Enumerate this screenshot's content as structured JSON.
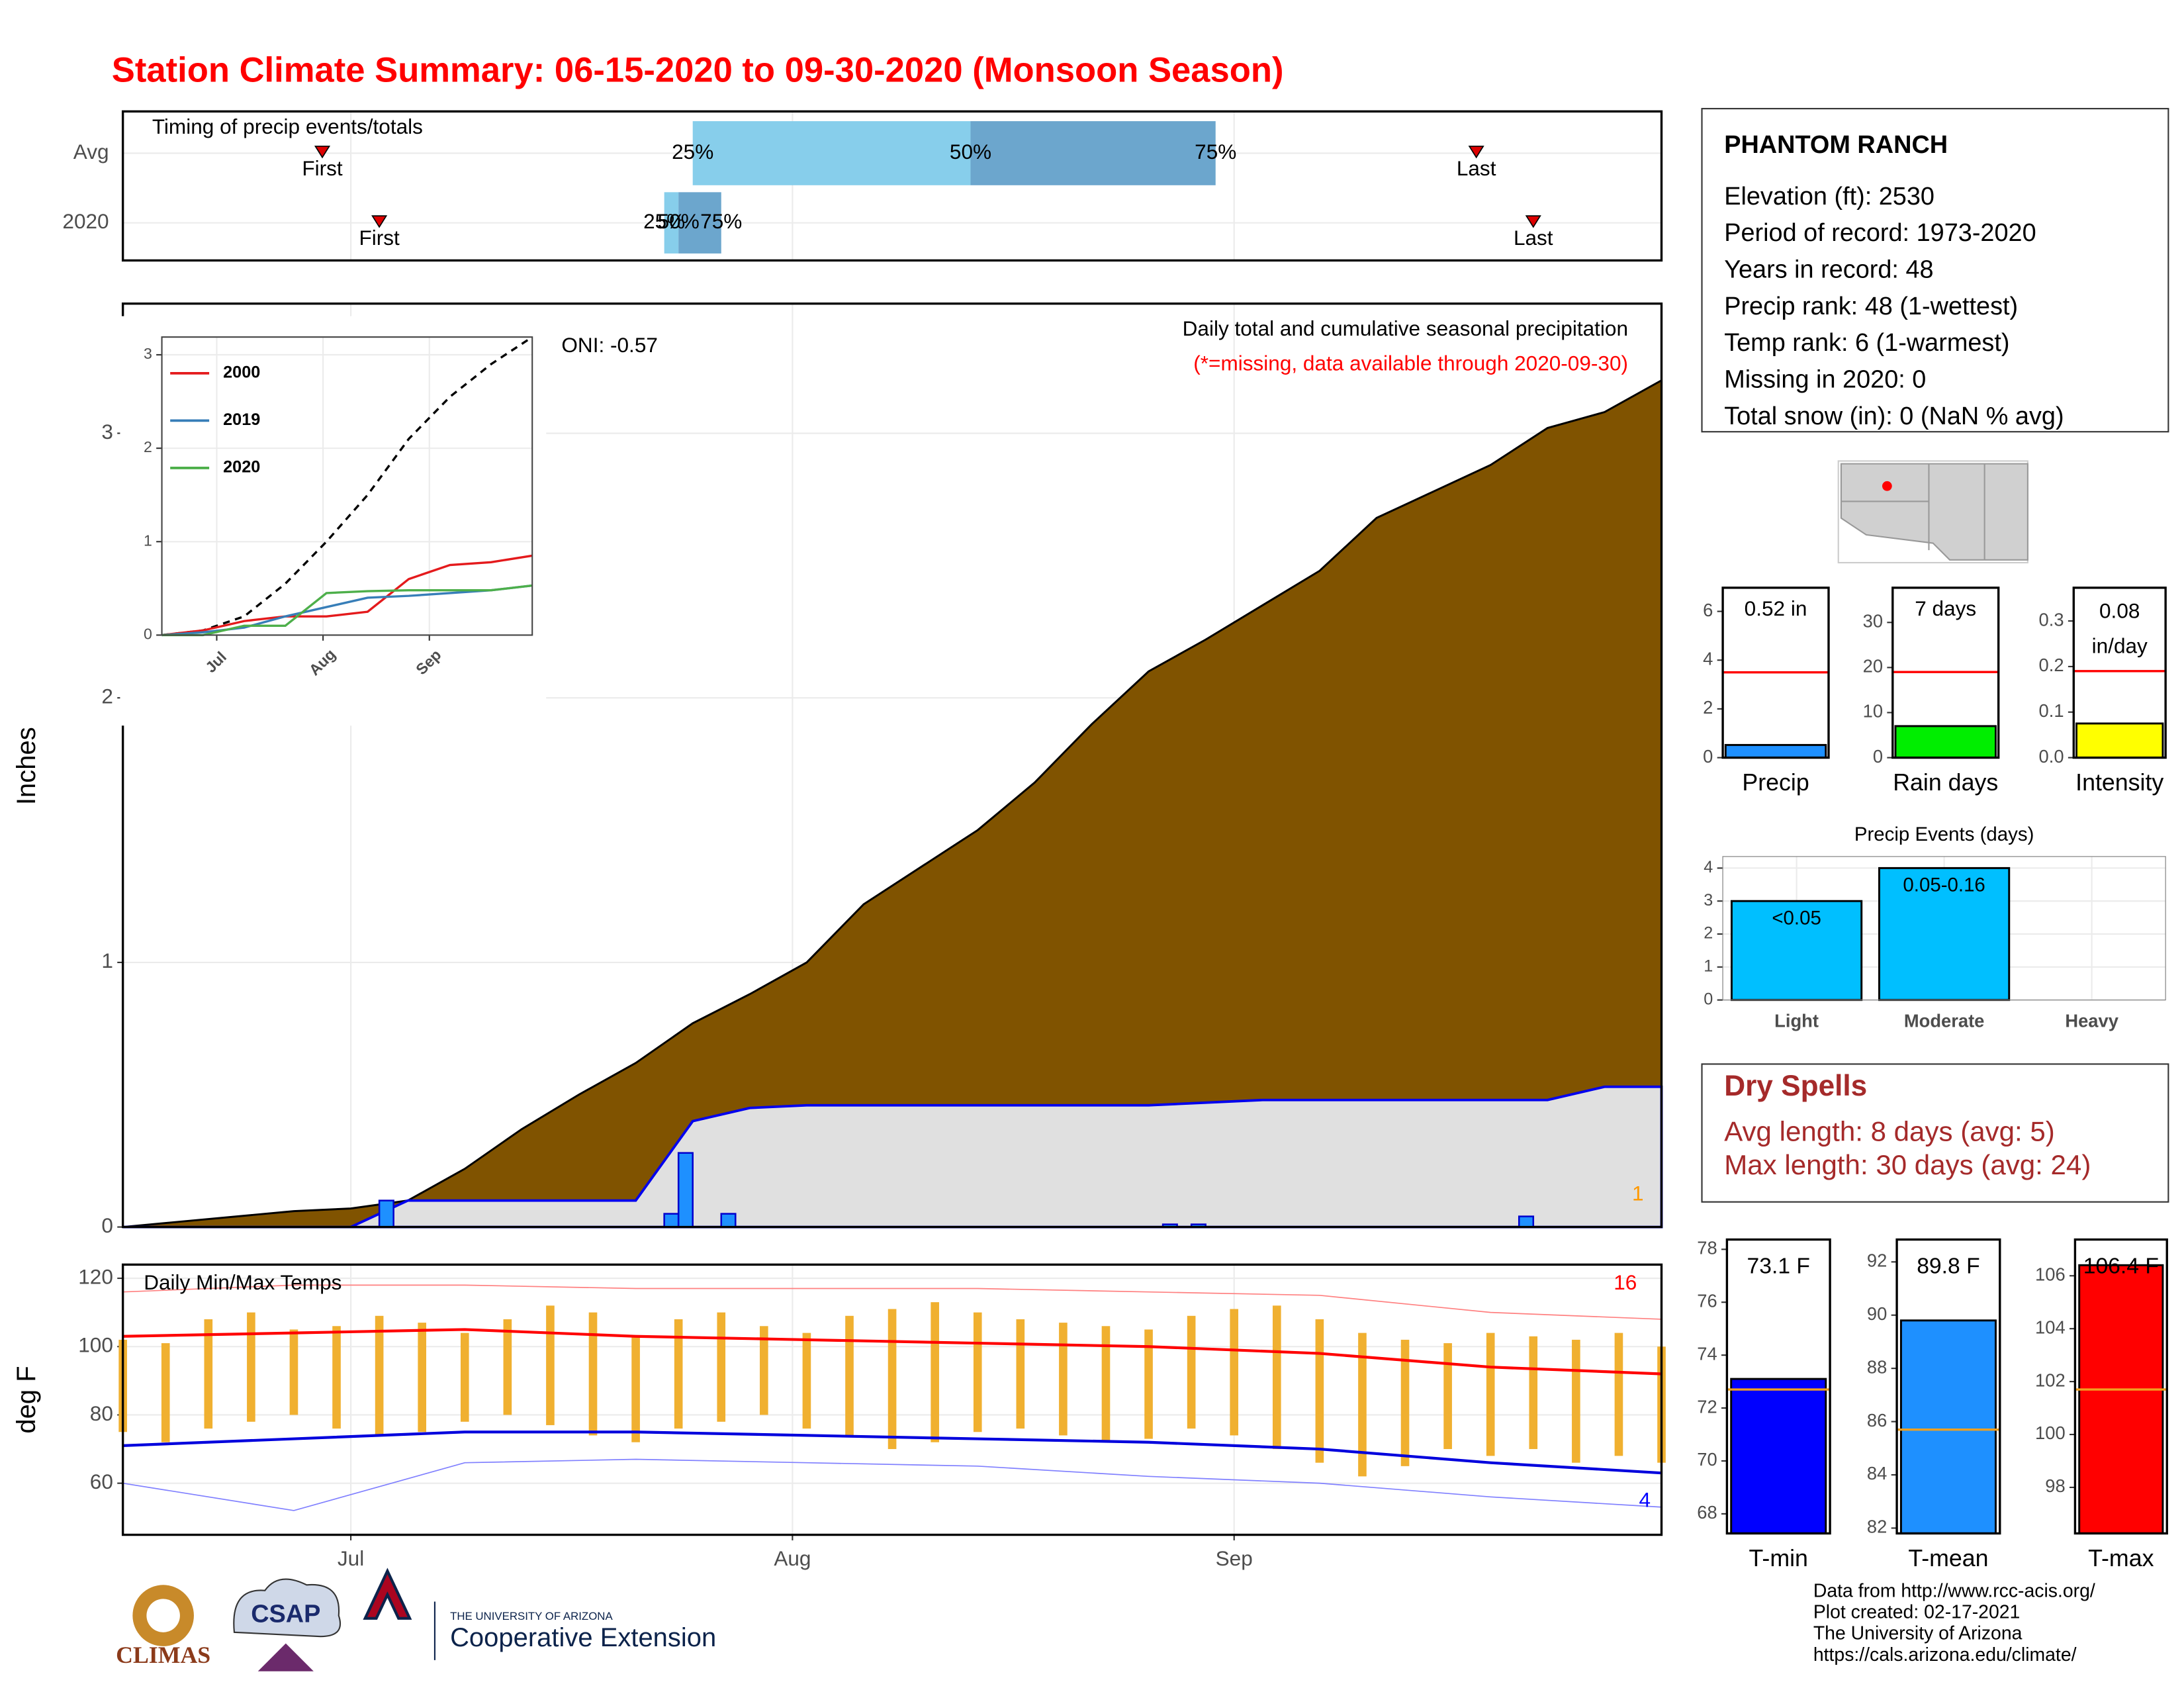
{
  "title": "Station Climate Summary: 06-15-2020 to 09-30-2020 (Monsoon Season)",
  "chart_data": [
    {
      "type": "timing",
      "title": "Timing of precip events/totals",
      "categories": [
        "Avg",
        "2020"
      ],
      "rows": [
        {
          "first": 14,
          "q25": 40,
          "q50": 59.5,
          "q75": 76.7,
          "last": 95
        },
        {
          "first": 18,
          "q25": 38,
          "q50": 39,
          "q75": 42,
          "last": 99
        }
      ],
      "marker_labels": {
        "first": "First",
        "last": "Last",
        "q25": "25%",
        "q50": "50%",
        "q75": "75%"
      },
      "colors": [
        "#87ceeb",
        "#6ca6cd"
      ],
      "xlim": [
        0,
        108
      ]
    },
    {
      "type": "precip",
      "title": "Daily total and cumulative seasonal precipitation",
      "note": "(*=missing, data available through 2020-09-30)",
      "oni": "ONI: -0.57",
      "ylabel": "Inches",
      "annotation": "1",
      "xlim": [
        0,
        108
      ],
      "ylim": [
        0,
        3.49
      ],
      "yticks": [
        0,
        1,
        2,
        3
      ],
      "grid": true,
      "series": [
        {
          "kind": "area",
          "color": "#805300",
          "x": [
            0,
            4,
            8,
            12,
            16,
            20,
            24,
            28,
            32,
            36,
            40,
            44,
            48,
            52,
            56,
            60,
            64,
            68,
            72,
            76,
            80,
            84,
            88,
            92,
            96,
            100,
            104,
            108
          ],
          "values": [
            0,
            0.02,
            0.04,
            0.06,
            0.07,
            0.1,
            0.22,
            0.37,
            0.5,
            0.62,
            0.77,
            0.88,
            1.0,
            1.22,
            1.36,
            1.5,
            1.68,
            1.9,
            2.1,
            2.22,
            2.35,
            2.48,
            2.68,
            2.78,
            2.88,
            3.02,
            3.08,
            3.2
          ]
        },
        {
          "kind": "area",
          "color": "#e0e0e0",
          "stroke": "#0000ee",
          "x": [
            0,
            4,
            8,
            12,
            16,
            20,
            24,
            28,
            32,
            36,
            40,
            44,
            48,
            52,
            56,
            60,
            64,
            68,
            72,
            76,
            80,
            84,
            88,
            92,
            96,
            100,
            104,
            108
          ],
          "values": [
            0,
            0,
            0,
            0,
            0,
            0.1,
            0.1,
            0.1,
            0.1,
            0.1,
            0.4,
            0.45,
            0.46,
            0.46,
            0.46,
            0.46,
            0.46,
            0.46,
            0.46,
            0.47,
            0.48,
            0.48,
            0.48,
            0.48,
            0.48,
            0.48,
            0.53,
            0.53
          ]
        },
        {
          "kind": "bars",
          "color": "#1e90ff",
          "stroke": "#0000cd",
          "x": [
            18,
            38,
            39,
            42,
            73,
            75,
            98
          ],
          "values": [
            0.1,
            0.05,
            0.28,
            0.05,
            0.01,
            0.01,
            0.04
          ]
        }
      ]
    },
    {
      "type": "line",
      "xlim": [
        0,
        108
      ],
      "ylim": [
        0,
        3.19
      ],
      "yticks": [
        0,
        1,
        2,
        3
      ],
      "xticks": [
        {
          "value": 16,
          "label": "Jul"
        },
        {
          "value": 47,
          "label": "Aug"
        },
        {
          "value": 78,
          "label": "Sep"
        }
      ],
      "series": [
        {
          "color": "#000000",
          "dashed": true,
          "x": [
            0,
            12,
            24,
            36,
            48,
            60,
            72,
            84,
            96,
            108
          ],
          "values": [
            0,
            0.05,
            0.2,
            0.55,
            1.0,
            1.5,
            2.1,
            2.55,
            2.9,
            3.19
          ]
        },
        {
          "name": "2000",
          "color": "#e41a1c",
          "x": [
            0,
            12,
            24,
            36,
            48,
            60,
            72,
            84,
            96,
            108
          ],
          "values": [
            0,
            0.05,
            0.15,
            0.2,
            0.2,
            0.25,
            0.6,
            0.75,
            0.78,
            0.85
          ]
        },
        {
          "name": "2019",
          "color": "#377eb8",
          "x": [
            0,
            12,
            24,
            36,
            48,
            60,
            72,
            84,
            96,
            108
          ],
          "values": [
            0,
            0.03,
            0.08,
            0.2,
            0.3,
            0.4,
            0.42,
            0.45,
            0.48,
            0.53
          ]
        },
        {
          "name": "2020",
          "color": "#4daf4a",
          "x": [
            0,
            12,
            24,
            36,
            48,
            60,
            72,
            84,
            96,
            108
          ],
          "values": [
            0,
            0,
            0.1,
            0.1,
            0.45,
            0.47,
            0.48,
            0.48,
            0.48,
            0.53
          ]
        }
      ]
    },
    {
      "type": "temps",
      "title": "Daily Min/Max Temps",
      "ylabel": "deg F",
      "annotations": [
        {
          "text": "16",
          "color": "#ff0000"
        },
        {
          "text": "4",
          "color": "#0000ff"
        }
      ],
      "xlim": [
        0,
        108
      ],
      "ylim": [
        44.9,
        124
      ],
      "yticks": [
        60,
        80,
        100,
        120
      ],
      "xticks": [
        {
          "value": 16,
          "label": "Jul"
        },
        {
          "value": 47,
          "label": "Aug"
        },
        {
          "value": 78,
          "label": "Sep"
        }
      ],
      "grid": true,
      "daily": {
        "color": "#f0b030",
        "x": [
          0,
          3,
          6,
          9,
          12,
          15,
          18,
          21,
          24,
          27,
          30,
          33,
          36,
          39,
          42,
          45,
          48,
          51,
          54,
          57,
          60,
          63,
          66,
          69,
          72,
          75,
          78,
          81,
          84,
          87,
          90,
          93,
          96,
          99,
          102,
          105,
          108
        ],
        "high": [
          102,
          101,
          108,
          110,
          105,
          106,
          109,
          107,
          104,
          108,
          112,
          110,
          103,
          108,
          110,
          106,
          104,
          109,
          111,
          113,
          110,
          108,
          107,
          106,
          105,
          109,
          111,
          112,
          108,
          104,
          102,
          101,
          104,
          103,
          102,
          104,
          100
        ],
        "low": [
          75,
          72,
          76,
          78,
          80,
          76,
          74,
          75,
          78,
          80,
          77,
          74,
          72,
          76,
          78,
          80,
          76,
          74,
          70,
          72,
          75,
          76,
          74,
          72,
          73,
          76,
          74,
          70,
          66,
          62,
          65,
          70,
          68,
          70,
          66,
          68,
          66
        ]
      },
      "series": [
        {
          "color": "#ff0000",
          "width": 2,
          "x": [
            0,
            12,
            24,
            36,
            48,
            60,
            72,
            84,
            96,
            108
          ],
          "values": [
            103,
            104,
            105,
            103,
            102,
            101,
            100,
            98,
            94,
            92
          ]
        },
        {
          "color": "#0000dd",
          "width": 2,
          "x": [
            0,
            12,
            24,
            36,
            48,
            60,
            72,
            84,
            96,
            108
          ],
          "values": [
            71,
            73,
            75,
            75,
            74,
            73,
            72,
            70,
            66,
            63
          ]
        },
        {
          "color": "#ff8080",
          "width": 0.8,
          "x": [
            0,
            12,
            24,
            36,
            48,
            60,
            72,
            84,
            96,
            108
          ],
          "values": [
            116,
            118,
            118,
            117,
            117,
            117,
            116,
            115,
            110,
            108
          ]
        },
        {
          "color": "#8080ff",
          "width": 0.8,
          "x": [
            0,
            12,
            24,
            36,
            48,
            60,
            72,
            84,
            96,
            108
          ],
          "values": [
            60,
            52,
            66,
            67,
            66,
            65,
            62,
            60,
            56,
            53
          ]
        }
      ]
    },
    {
      "type": "mini-bar",
      "categories": [
        "Precip"
      ],
      "values": [
        0.52
      ],
      "value_labels": [
        "0.52 in"
      ],
      "average": 3.5,
      "color": "#1e90ff",
      "ylim": [
        0,
        6.97
      ],
      "yticks": [
        0,
        2,
        4,
        6
      ]
    },
    {
      "type": "mini-bar",
      "categories": [
        "Rain days"
      ],
      "values": [
        7
      ],
      "value_labels": [
        "7 days"
      ],
      "average": 19,
      "color": "#00ee00",
      "ylim": [
        0,
        37.7
      ],
      "yticks": [
        0,
        10,
        20,
        30
      ]
    },
    {
      "type": "mini-bar",
      "categories": [
        "Intensity"
      ],
      "values": [
        0.075
      ],
      "value_labels": [
        "0.08 in/day"
      ],
      "average": 0.19,
      "color": "#ffff00",
      "ylim": [
        0,
        0.373
      ],
      "yticks": [
        {
          "value": 0,
          "label": "0.0"
        },
        0.1,
        0.2,
        0.3
      ]
    },
    {
      "type": "events",
      "title": "Precip Events (days)",
      "categories": [
        "Light",
        "Moderate",
        "Heavy"
      ],
      "values": [
        3,
        4,
        0
      ],
      "category_ranges": [
        "<0.05",
        "0.05-0.16",
        null
      ],
      "color": "#00bfff",
      "ylim": [
        0,
        4.35
      ],
      "yticks": [
        0,
        1,
        2,
        3,
        4
      ],
      "grid": true
    },
    {
      "type": "temp-bar",
      "categories": [
        "T-min"
      ],
      "values": [
        73.1
      ],
      "value_labels": [
        "73.1 F"
      ],
      "average": 72.7,
      "color": "#0000ff",
      "ylim": [
        67.26,
        78.37
      ],
      "yticks": [
        68,
        70,
        72,
        74,
        76,
        78
      ]
    },
    {
      "type": "temp-bar",
      "categories": [
        "T-mean"
      ],
      "values": [
        89.8
      ],
      "value_labels": [
        "89.8 F"
      ],
      "average": 85.7,
      "color": "#1e90ff",
      "ylim": [
        81.8,
        92.84
      ],
      "yticks": [
        82,
        84,
        86,
        88,
        90,
        92
      ]
    },
    {
      "type": "temp-bar",
      "categories": [
        "T-max"
      ],
      "values": [
        106.4
      ],
      "value_labels": [
        "106.4 F"
      ],
      "average": 101.7,
      "color": "#ff0000",
      "ylim": [
        96.26,
        107.37
      ],
      "yticks": [
        98,
        100,
        102,
        104,
        106
      ]
    }
  ],
  "station": {
    "name": "PHANTOM RANCH",
    "lines": [
      "Elevation (ft): 2530",
      "Period of record: 1973-2020",
      "Years in record: 48",
      "Precip rank: 48 (1-wettest)",
      "Temp rank: 6 (1-warmest)",
      "Missing in 2020: 0",
      "Total snow (in): 0 (NaN % avg)"
    ]
  },
  "dry_spells": {
    "title": "Dry Spells",
    "lines": [
      "Avg length: 8 days (avg: 5)",
      "Max length: 30 days (avg: 24)"
    ]
  },
  "footer": {
    "lines": [
      "Data from http://www.rcc-acis.org/",
      "Plot created: 02-17-2021",
      "The University of Arizona",
      "https://cals.arizona.edu/climate/"
    ],
    "logos": [
      "CLIMAS",
      "CSAP",
      "THE UNIVERSITY OF ARIZONA",
      "Cooperative Extension"
    ]
  }
}
